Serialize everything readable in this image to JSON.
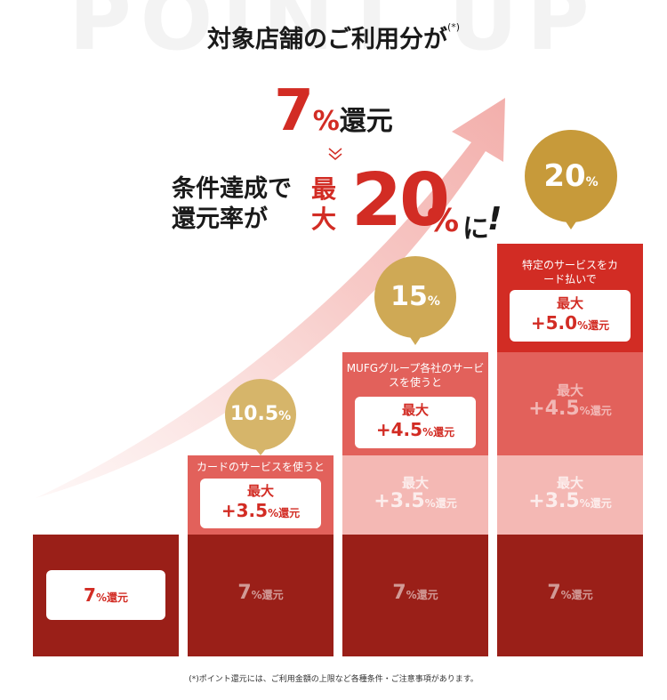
{
  "watermark": "POINT UP",
  "headline": {
    "line1": "対象店舗のご利用分が",
    "line1_note": "(*)",
    "rate": "7",
    "rate_unit": "%",
    "rate_suffix": "還元"
  },
  "condition": {
    "line1": "条件達成で",
    "line2": "還元率が",
    "max_label_1": "最",
    "max_label_2": "大",
    "max_rate": "20",
    "max_unit": "%",
    "suffix": "に",
    "exclaim": "!"
  },
  "columns": [
    {
      "total": "",
      "base": {
        "value": "7",
        "unit": "%",
        "label": "還元"
      }
    },
    {
      "total": "10.5",
      "total_unit": "%",
      "caption": "カードのサービスを使うと",
      "bonus": {
        "prefix": "最大",
        "value": "+3.5",
        "unit": "%",
        "label": "還元"
      },
      "base": {
        "value": "7",
        "unit": "%",
        "label": "還元"
      }
    },
    {
      "total": "15",
      "total_unit": "%",
      "caption": "MUFGグループ各社のサービスを使うと",
      "bonus": {
        "prefix": "最大",
        "value": "+4.5",
        "unit": "%",
        "label": "還元"
      },
      "faint_bonus": {
        "prefix": "最大",
        "value": "+3.5",
        "unit": "%",
        "label": "還元"
      },
      "base": {
        "value": "7",
        "unit": "%",
        "label": "還元"
      }
    },
    {
      "total": "20",
      "total_unit": "%",
      "caption": "特定のサービスをカード払いで",
      "bonus": {
        "prefix": "最大",
        "value": "+5.0",
        "unit": "%",
        "label": "還元"
      },
      "faint_bonus_a": {
        "prefix": "最大",
        "value": "+4.5",
        "unit": "%",
        "label": "還元"
      },
      "faint_bonus_b": {
        "prefix": "最大",
        "value": "+3.5",
        "unit": "%",
        "label": "還元"
      },
      "base": {
        "value": "7",
        "unit": "%",
        "label": "還元"
      }
    }
  ],
  "footnote": "(*)ポイント還元には、ご利用金額の上限など各種条件・ご注意事項があります。",
  "colors": {
    "accent_red": "#d22c24",
    "dark_red": "#9a1f18",
    "mid_red": "#e2615b",
    "light_red": "#f4b8b4",
    "gold": "#c9a24a"
  }
}
